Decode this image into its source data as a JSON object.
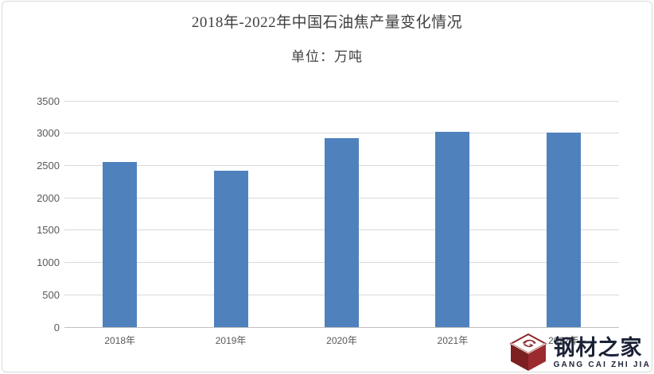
{
  "header": {
    "title": "2018年-2022年中国石油焦产量变化情况",
    "unit_label": "单位：万吨"
  },
  "chart_data": {
    "type": "bar",
    "title": "2018年-2022年中国石油焦产量变化情况",
    "subtitle": "单位：万吨",
    "categories": [
      "2018年",
      "2019年",
      "2020年",
      "2021年",
      "2022年"
    ],
    "values": [
      2550,
      2420,
      2920,
      3025,
      3010
    ],
    "xlabel": "",
    "ylabel": "万吨",
    "ylim": [
      0,
      3500
    ],
    "yticks": [
      0,
      500,
      1000,
      1500,
      2000,
      2500,
      3000,
      3500
    ],
    "grid": true,
    "legend": "none",
    "bar_color": "#4f81bd"
  },
  "colors": {
    "background": "#ffffff",
    "frame_border": "#d9d9d9",
    "bar": "#4f81bd",
    "gridline": "#d9d9d9",
    "axis_line": "#bfbfbf",
    "tick_label": "#595959",
    "title_text": "#3f3f3f",
    "logo_maroon_dark": "#7c2022",
    "logo_maroon_light": "#9b2b2e",
    "logo_navy": "#1b2236"
  },
  "watermark": {
    "monogram": "G",
    "brand_cn": "钢材之家",
    "brand_en": "GANG CAI ZHI JIA"
  }
}
